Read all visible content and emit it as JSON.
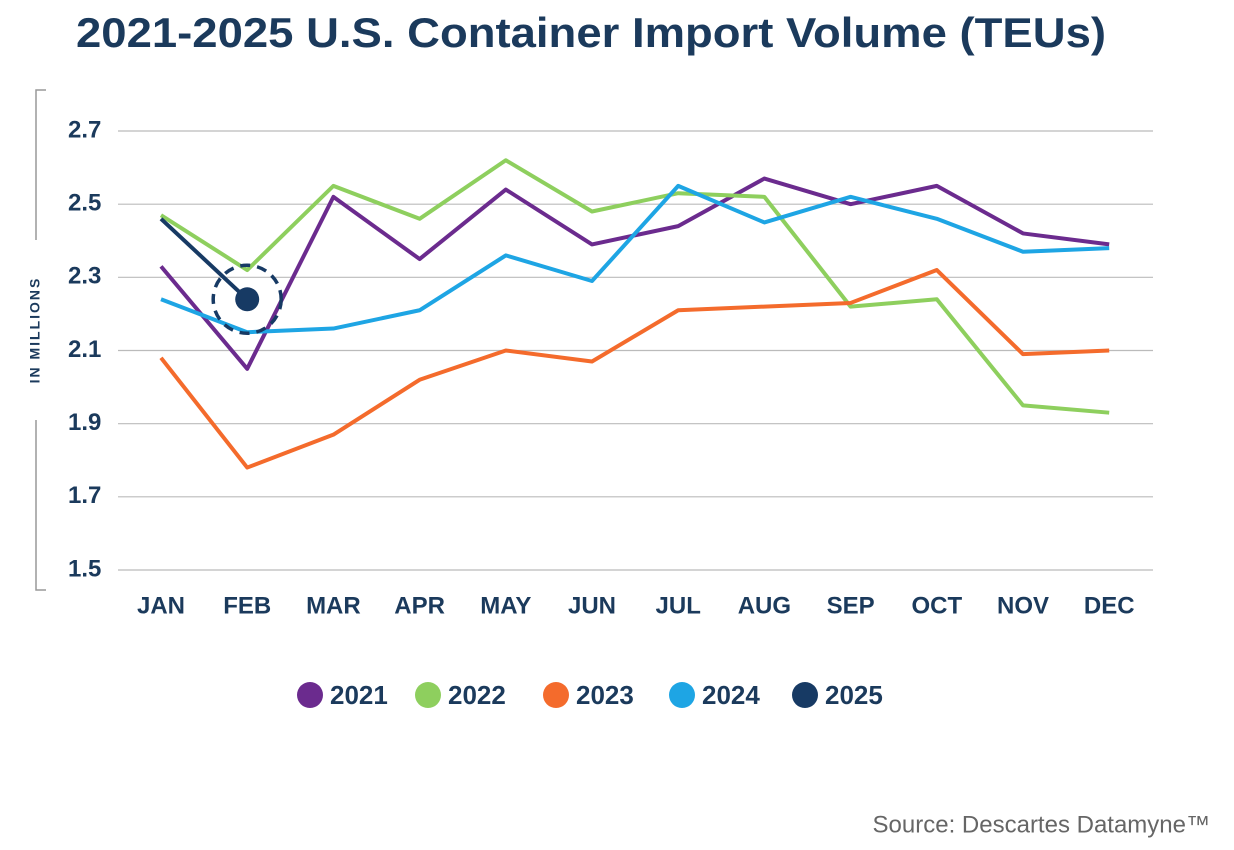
{
  "chart_data": {
    "type": "line",
    "title": "2021-2025 U.S. Container Import Volume (TEUs)",
    "y_label": "IN MILLIONS",
    "source": "Source: Descartes Datamyne™",
    "categories": [
      "JAN",
      "FEB",
      "MAR",
      "APR",
      "MAY",
      "JUN",
      "JUL",
      "AUG",
      "SEP",
      "OCT",
      "NOV",
      "DEC"
    ],
    "series": [
      {
        "name": "2021",
        "color": "#6b2b8e",
        "values": [
          2.33,
          2.05,
          2.52,
          2.35,
          2.54,
          2.39,
          2.44,
          2.57,
          2.5,
          2.55,
          2.42,
          2.39
        ]
      },
      {
        "name": "2022",
        "color": "#8ecf5e",
        "values": [
          2.47,
          2.32,
          2.55,
          2.46,
          2.62,
          2.48,
          2.53,
          2.52,
          2.22,
          2.24,
          1.95,
          1.93
        ]
      },
      {
        "name": "2023",
        "color": "#f46b2c",
        "values": [
          2.08,
          1.78,
          1.87,
          2.02,
          2.1,
          2.07,
          2.21,
          2.22,
          2.23,
          2.32,
          2.09,
          2.1
        ]
      },
      {
        "name": "2024",
        "color": "#1ea5e4",
        "values": [
          2.24,
          2.15,
          2.16,
          2.21,
          2.36,
          2.29,
          2.55,
          2.45,
          2.52,
          2.46,
          2.37,
          2.38
        ]
      },
      {
        "name": "2025",
        "color": "#173a64",
        "values": [
          2.46,
          2.24,
          null,
          null,
          null,
          null,
          null,
          null,
          null,
          null,
          null,
          null
        ]
      }
    ],
    "ylim": [
      1.5,
      2.7
    ],
    "yticks": [
      1.5,
      1.7,
      1.9,
      2.1,
      2.3,
      2.5,
      2.7
    ],
    "grid": true
  }
}
